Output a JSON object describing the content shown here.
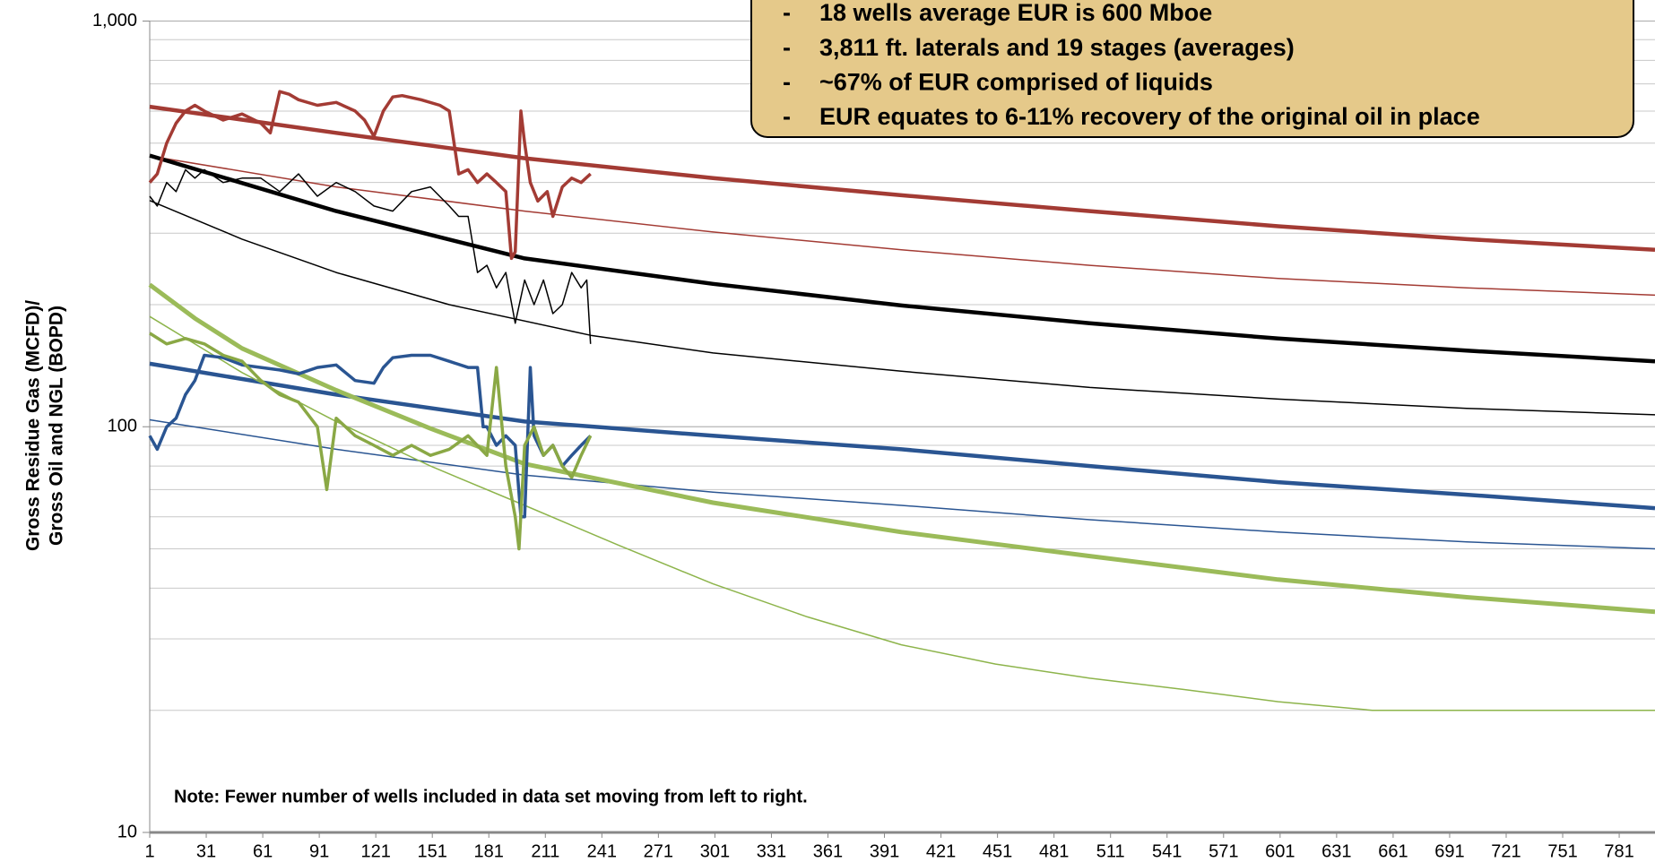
{
  "chart_data": {
    "type": "line",
    "y_axis_label": [
      "Gross Residue Gas (MCFD)/",
      "Gross Oil and  NGL (BOPD)"
    ],
    "note": "Note: Fewer number of wells included in data set moving from left to right.",
    "box_lines": [
      "18 wells average EUR is 600 Mboe",
      "3,811 ft. laterals and 19 stages (averages)",
      "~67% of EUR comprised of liquids",
      "EUR equates to 6-11% recovery of the original oil in place"
    ],
    "box_bullet": "-",
    "box_color": "#e5c98a",
    "log_y": true,
    "grid": true,
    "minor_grid": true,
    "xlim": [
      1,
      800
    ],
    "ylim": [
      10,
      1000
    ],
    "yticks": [
      10,
      100,
      {
        "value": 1000,
        "label": "1,000"
      }
    ],
    "xticks": [
      1,
      31,
      61,
      91,
      121,
      151,
      181,
      211,
      241,
      271,
      301,
      331,
      361,
      391,
      421,
      451,
      481,
      511,
      541,
      571,
      601,
      631,
      661,
      691,
      721,
      751,
      781
    ],
    "series": [
      {
        "color": "#a33b34",
        "width": 4.5,
        "x": [
          1,
          100,
          200,
          300,
          400,
          500,
          600,
          700,
          800
        ],
        "values": [
          615,
          530,
          459,
          410,
          372,
          340,
          312,
          290,
          273
        ]
      },
      {
        "color": "#a33b34",
        "width": 1.5,
        "x": [
          1,
          100,
          200,
          300,
          400,
          500,
          600,
          700,
          800
        ],
        "values": [
          465,
          390,
          340,
          302,
          273,
          250,
          232,
          220,
          211
        ]
      },
      {
        "color": "#000000",
        "width": 4.5,
        "x": [
          1,
          100,
          200,
          300,
          400,
          500,
          600,
          700,
          800
        ],
        "values": [
          466,
          340,
          260,
          225,
          199,
          180,
          165,
          154,
          145
        ]
      },
      {
        "color": "#000000",
        "width": 1.5,
        "x": [
          1,
          50,
          100,
          160,
          235,
          300,
          400,
          500,
          600,
          700,
          800
        ],
        "values": [
          361,
          290,
          240,
          200,
          168,
          152,
          137,
          125,
          117,
          111,
          107
        ]
      },
      {
        "color": "#2a5592",
        "width": 4.5,
        "x": [
          1,
          100,
          200,
          300,
          400,
          500,
          600,
          700,
          800
        ],
        "values": [
          143,
          120,
          103,
          95,
          88,
          80,
          73,
          68,
          63
        ]
      },
      {
        "color": "#2a5592",
        "width": 1.5,
        "x": [
          1,
          100,
          200,
          300,
          400,
          500,
          600,
          700,
          800
        ],
        "values": [
          104,
          88,
          76,
          69,
          64,
          59,
          55,
          52,
          50
        ]
      },
      {
        "color": "#9bbb59",
        "width": 5,
        "x": [
          1,
          25,
          50,
          100,
          150,
          200,
          300,
          400,
          500,
          600,
          700,
          800
        ],
        "values": [
          224,
          185,
          156,
          123,
          99,
          81,
          65,
          55,
          48,
          42,
          38,
          35
        ]
      },
      {
        "color": "#8db44b",
        "width": 1.5,
        "x": [
          1,
          50,
          100,
          150,
          200,
          250,
          300,
          350,
          400,
          450,
          500,
          550,
          600,
          650,
          700,
          800
        ],
        "values": [
          187,
          136,
          103,
          80,
          64,
          51,
          41,
          34,
          29,
          26,
          24,
          22.5,
          21,
          20,
          20,
          20
        ]
      },
      {
        "color": "#a33b34",
        "width": 3.5,
        "x": [
          1,
          5,
          10,
          15,
          20,
          25,
          30,
          40,
          50,
          60,
          65,
          70,
          75,
          80,
          90,
          100,
          110,
          115,
          120,
          125,
          130,
          135,
          145,
          155,
          160,
          165,
          170,
          175,
          180,
          185,
          190,
          193,
          195,
          198,
          200,
          203,
          207,
          212,
          215,
          220,
          225,
          230,
          235
        ],
        "values": [
          400,
          420,
          500,
          560,
          600,
          620,
          600,
          570,
          590,
          560,
          530,
          670,
          660,
          640,
          620,
          630,
          600,
          570,
          520,
          600,
          650,
          655,
          640,
          620,
          600,
          420,
          430,
          400,
          420,
          400,
          380,
          260,
          270,
          600,
          500,
          400,
          360,
          380,
          330,
          390,
          410,
          400,
          420
        ]
      },
      {
        "color": "#000000",
        "width": 1.5,
        "x": [
          1,
          5,
          10,
          15,
          20,
          25,
          30,
          40,
          50,
          60,
          70,
          80,
          90,
          100,
          110,
          120,
          130,
          140,
          150,
          160,
          165,
          170,
          175,
          180,
          185,
          190,
          195,
          200,
          205,
          210,
          215,
          220,
          225,
          230,
          233,
          235
        ],
        "values": [
          370,
          350,
          400,
          380,
          430,
          410,
          430,
          400,
          410,
          410,
          380,
          420,
          370,
          400,
          380,
          350,
          340,
          380,
          390,
          350,
          330,
          330,
          240,
          250,
          220,
          240,
          180,
          230,
          200,
          230,
          190,
          200,
          240,
          220,
          230,
          160
        ]
      },
      {
        "color": "#2a5592",
        "width": 3.5,
        "x": [
          1,
          5,
          10,
          15,
          20,
          25,
          30,
          40,
          50,
          60,
          70,
          80,
          90,
          100,
          110,
          120,
          125,
          130,
          140,
          150,
          160,
          170,
          175,
          178,
          180,
          185,
          190,
          195,
          198,
          200,
          203,
          205,
          210,
          215,
          220,
          225,
          230,
          235
        ],
        "values": [
          95,
          88,
          100,
          105,
          120,
          130,
          150,
          148,
          142,
          140,
          138,
          135,
          140,
          142,
          130,
          128,
          140,
          148,
          150,
          150,
          145,
          140,
          140,
          100,
          100,
          90,
          95,
          90,
          60,
          60,
          140,
          95,
          85,
          90,
          80,
          85,
          90,
          95
        ]
      },
      {
        "color": "#8aa845",
        "width": 3.5,
        "x": [
          1,
          10,
          20,
          30,
          40,
          50,
          60,
          70,
          80,
          90,
          95,
          100,
          110,
          120,
          130,
          140,
          150,
          160,
          170,
          180,
          185,
          190,
          195,
          197,
          200,
          205,
          210,
          215,
          220,
          225,
          230,
          235
        ],
        "values": [
          170,
          160,
          165,
          160,
          150,
          145,
          130,
          120,
          115,
          100,
          70,
          105,
          95,
          90,
          85,
          90,
          85,
          88,
          95,
          85,
          140,
          80,
          60,
          50,
          90,
          100,
          85,
          90,
          80,
          75,
          85,
          95
        ]
      }
    ]
  }
}
